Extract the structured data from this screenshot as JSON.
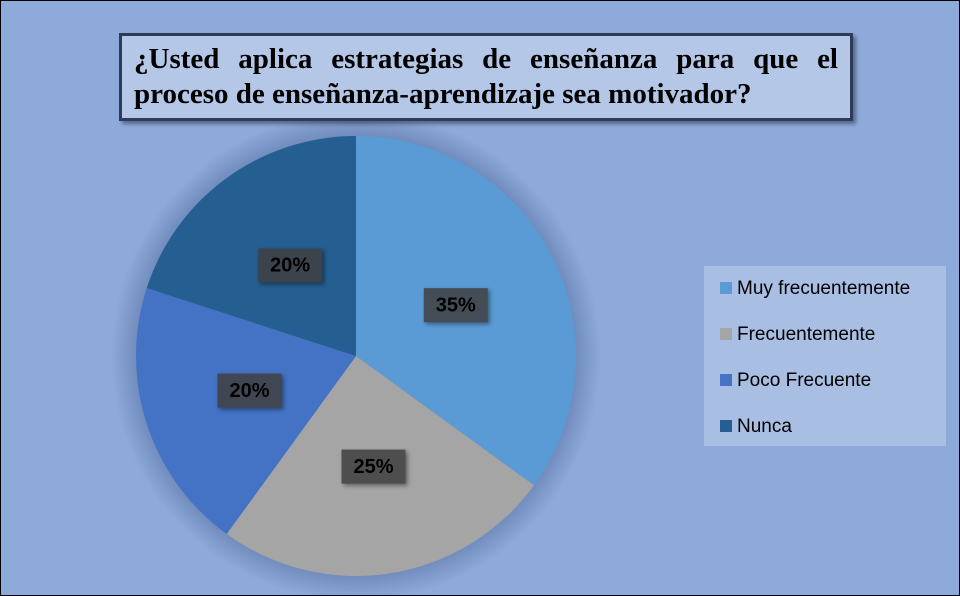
{
  "chart_data": {
    "type": "pie",
    "title": "¿Usted aplica estrategias de enseñanza para que el proceso de enseñanza-aprendizaje sea motivador?",
    "categories": [
      "Muy frecuentemente",
      "Frecuentemente",
      "Poco Frecuente",
      "Nunca"
    ],
    "values": [
      35,
      25,
      20,
      20
    ],
    "value_labels": [
      "35%",
      "25%",
      "20%",
      "20%"
    ],
    "colors": [
      "#5b9bd5",
      "#a5a5a5",
      "#4472c4",
      "#255e91"
    ],
    "legend": "right"
  }
}
